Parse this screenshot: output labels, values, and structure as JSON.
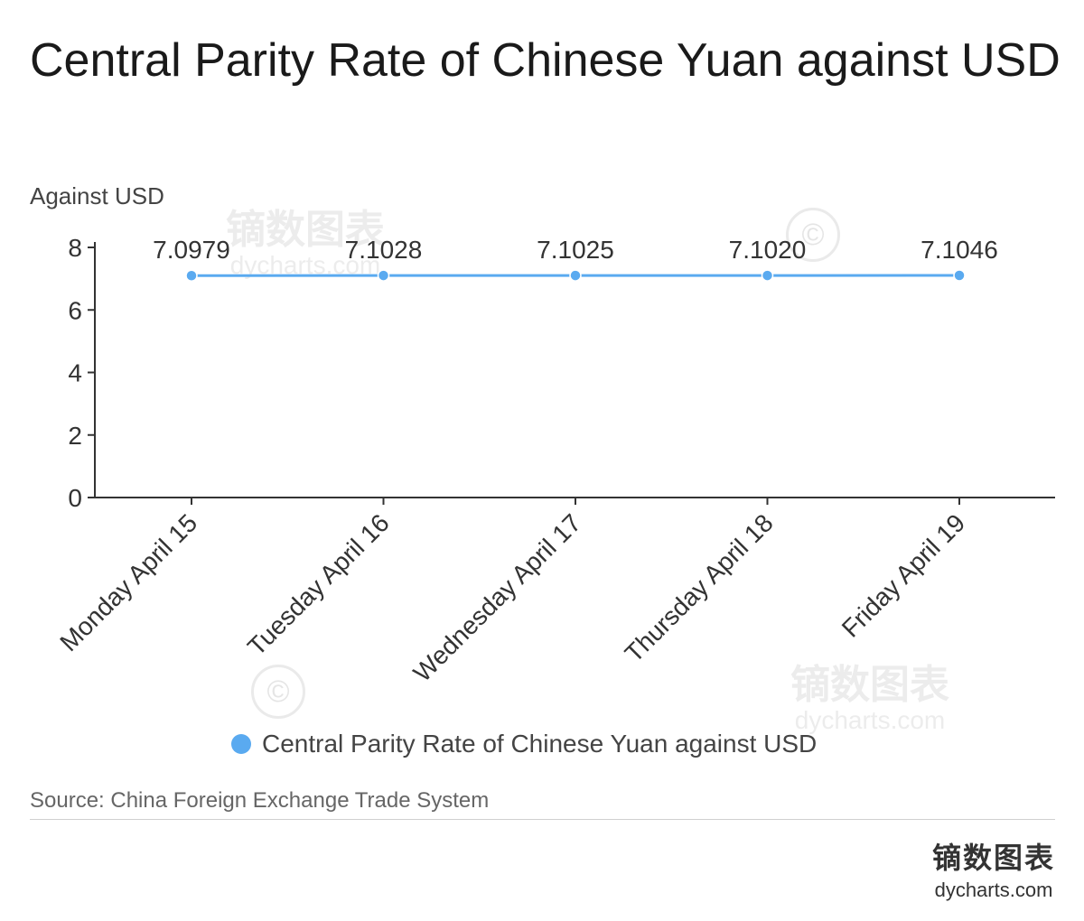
{
  "title": "Central Parity Rate of Chinese Yuan against USD",
  "unit_label": "Against USD",
  "source": "Source: China Foreign Exchange Trade System",
  "brand": {
    "name_cn": "镝数图表",
    "domain": "dycharts.com"
  },
  "watermark": {
    "name_cn": "镝数图表",
    "domain": "dycharts.com"
  },
  "colors": {
    "series": "#5aaaf0",
    "axis": "#333333"
  },
  "chart_data": {
    "type": "line",
    "categories": [
      "Monday April 15",
      "Tuesday April 16",
      "Wednesday April 17",
      "Thursday April 18",
      "Friday April 19"
    ],
    "series": [
      {
        "name": "Central Parity Rate of Chinese Yuan against USD",
        "values": [
          7.0979,
          7.1028,
          7.1025,
          7.102,
          7.1046
        ],
        "labels": [
          "7.0979",
          "7.1028",
          "7.1025",
          "7.1020",
          "7.1046"
        ]
      }
    ],
    "ylabel": "Against USD",
    "ylim": [
      0,
      8
    ],
    "yticks": [
      0,
      2,
      4,
      6,
      8
    ],
    "grid": false,
    "legend": "bottom"
  }
}
